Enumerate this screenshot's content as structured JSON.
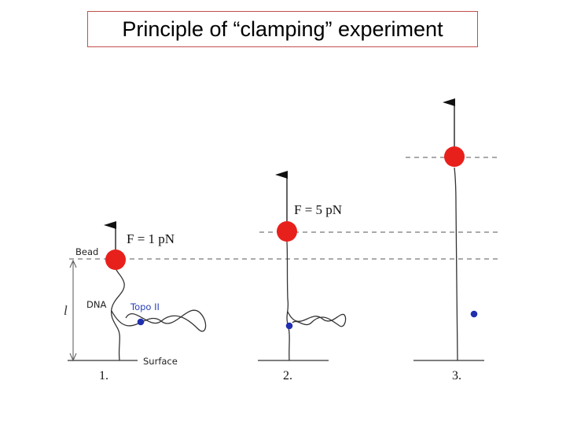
{
  "title": "Principle of “clamping” experiment",
  "labels": {
    "bead": "Bead",
    "dna": "DNA",
    "topo": "Topo II",
    "surface": "Surface",
    "length": "l"
  },
  "panels": [
    {
      "number": "1.",
      "force": "F = 1 pN"
    },
    {
      "number": "2.",
      "force": "F = 5 pN"
    },
    {
      "number": "3."
    }
  ],
  "colors": {
    "bead": "#e8201c",
    "topo": "#1f2fb0",
    "title_border": "#c0504d"
  }
}
